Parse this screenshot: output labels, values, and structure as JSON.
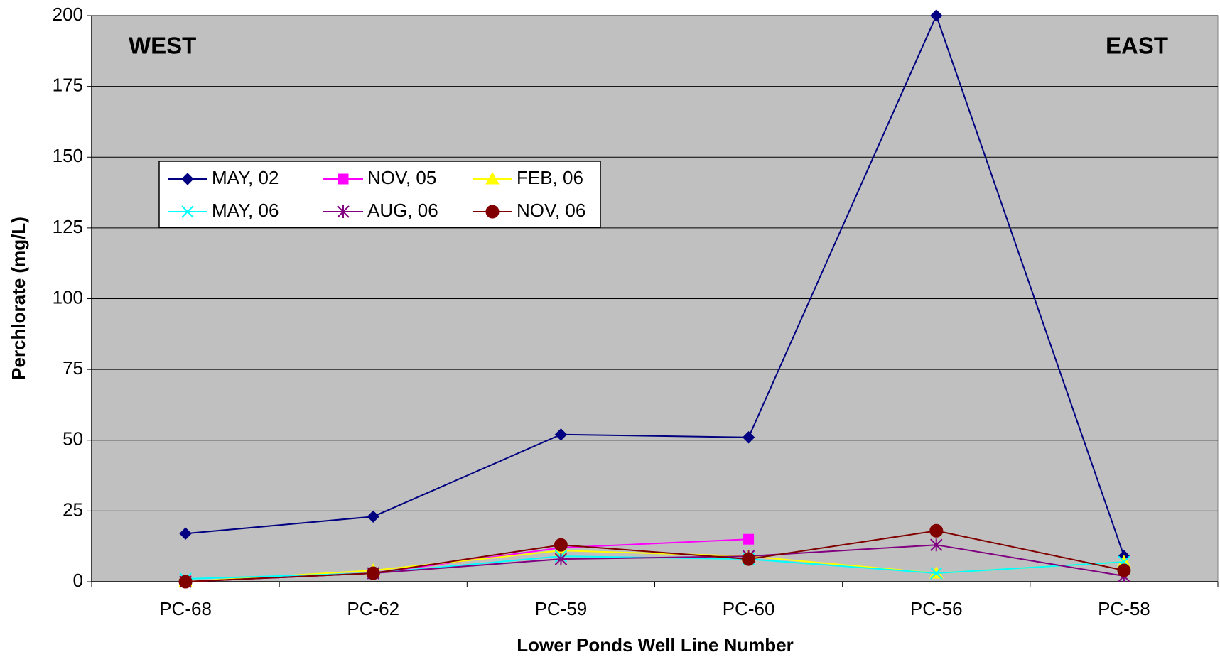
{
  "chart_data": {
    "type": "line",
    "x_label": "Lower Ponds Well Line Number",
    "y_label": "Perchlorate (mg/L)",
    "annotations": [
      "WEST",
      "EAST"
    ],
    "categories": [
      "PC-68",
      "PC-62",
      "PC-59",
      "PC-60",
      "PC-56",
      "PC-58"
    ],
    "ylim": [
      0,
      200
    ],
    "yticks": [
      0,
      25,
      50,
      75,
      100,
      125,
      150,
      175,
      200
    ],
    "grid": true,
    "series": [
      {
        "name": "MAY, 02",
        "color": "#000080",
        "marker": "diamond",
        "values": [
          17,
          23,
          52,
          51,
          200,
          9
        ]
      },
      {
        "name": "NOV, 05",
        "color": "#ff00ff",
        "marker": "square",
        "values": [
          0,
          3,
          12,
          15,
          null,
          null
        ]
      },
      {
        "name": "FEB, 06",
        "color": "#ffff00",
        "marker": "triangle",
        "values": [
          0,
          4,
          11,
          9,
          3,
          7
        ]
      },
      {
        "name": "MAY, 06",
        "color": "#00ffff",
        "marker": "x",
        "values": [
          1,
          3,
          9,
          8,
          3,
          7
        ]
      },
      {
        "name": "AUG, 06",
        "color": "#800080",
        "marker": "star",
        "values": [
          0,
          3,
          8,
          9,
          13,
          2
        ]
      },
      {
        "name": "NOV, 06",
        "color": "#800000",
        "marker": "circle",
        "values": [
          0,
          3,
          13,
          8,
          18,
          4
        ]
      }
    ]
  }
}
